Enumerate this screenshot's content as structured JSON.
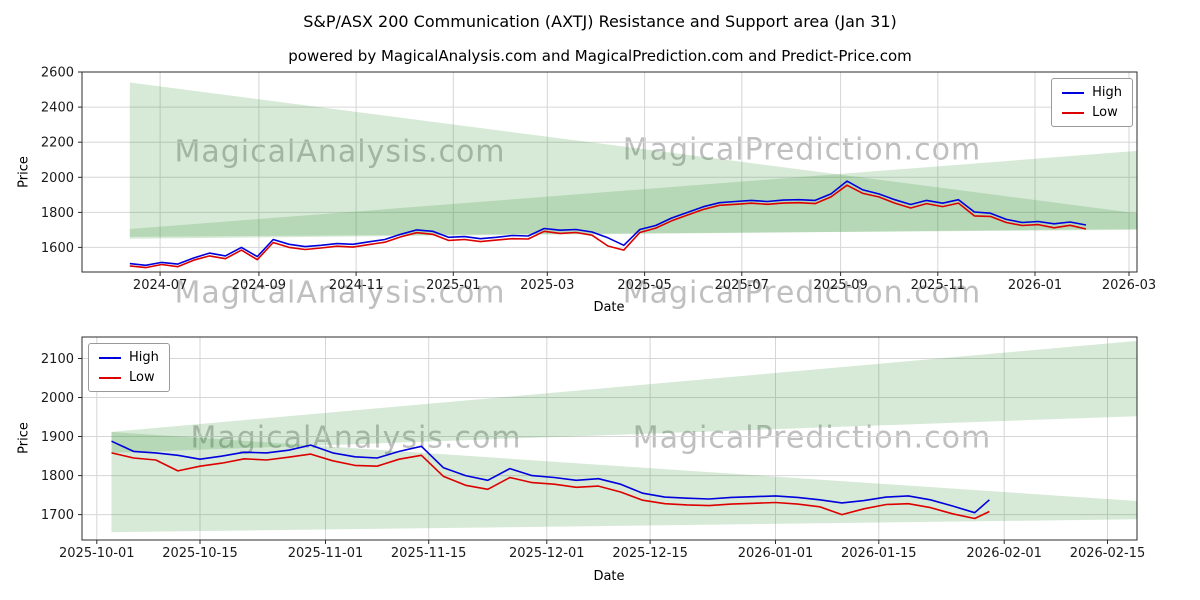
{
  "page": {
    "title": "S&P/ASX 200 Communication (AXTJ) Resistance and Support area (Jan 31)",
    "subtitle": "powered by MagicalAnalysis.com and MagicalPrediction.com and Predict-Price.com",
    "watermarks": [
      "MagicalAnalysis.com",
      "MagicalPrediction.com"
    ]
  },
  "colors": {
    "high": "#0000dd",
    "low": "#dd0000",
    "band": "rgba(34,139,34,0.18)",
    "grid": "#d6d6d6",
    "spine": "#2b2b2b",
    "tick_text": "#1a1a1a",
    "watermark": "rgba(128,128,128,0.5)"
  },
  "chart_data": [
    {
      "type": "line",
      "title": "",
      "xlabel": "Date",
      "ylabel": "Price",
      "legend_position": "upper right",
      "grid": true,
      "x_range": [
        "2024-05-13",
        "2026-03-06"
      ],
      "y_range": [
        1460,
        2600
      ],
      "y_ticks": [
        1600,
        1800,
        2000,
        2200,
        2400,
        2600
      ],
      "x_ticks": [
        {
          "pos": "2024-07-01",
          "label": "2024-07"
        },
        {
          "pos": "2024-09-01",
          "label": "2024-09"
        },
        {
          "pos": "2024-11-01",
          "label": "2024-11"
        },
        {
          "pos": "2025-01-01",
          "label": "2025-01"
        },
        {
          "pos": "2025-03-01",
          "label": "2025-03"
        },
        {
          "pos": "2025-05-01",
          "label": "2025-05"
        },
        {
          "pos": "2025-07-01",
          "label": "2025-07"
        },
        {
          "pos": "2025-09-01",
          "label": "2025-09"
        },
        {
          "pos": "2025-11-01",
          "label": "2025-11"
        },
        {
          "pos": "2026-01-01",
          "label": "2026-01"
        },
        {
          "pos": "2026-03-01",
          "label": "2026-03"
        }
      ],
      "x": [
        "2024-06-12",
        "2024-06-22",
        "2024-07-02",
        "2024-07-12",
        "2024-07-22",
        "2024-08-01",
        "2024-08-11",
        "2024-08-21",
        "2024-08-31",
        "2024-09-10",
        "2024-09-20",
        "2024-09-30",
        "2024-10-10",
        "2024-10-20",
        "2024-10-30",
        "2024-11-09",
        "2024-11-19",
        "2024-11-29",
        "2024-12-09",
        "2024-12-19",
        "2024-12-29",
        "2025-01-08",
        "2025-01-18",
        "2025-01-28",
        "2025-02-07",
        "2025-02-17",
        "2025-02-27",
        "2025-03-09",
        "2025-03-19",
        "2025-03-29",
        "2025-04-08",
        "2025-04-18",
        "2025-04-28",
        "2025-05-08",
        "2025-05-18",
        "2025-05-28",
        "2025-06-07",
        "2025-06-17",
        "2025-06-27",
        "2025-07-07",
        "2025-07-17",
        "2025-07-27",
        "2025-08-06",
        "2025-08-16",
        "2025-08-26",
        "2025-09-05",
        "2025-09-15",
        "2025-09-25",
        "2025-10-05",
        "2025-10-15",
        "2025-10-25",
        "2025-11-04",
        "2025-11-14",
        "2025-11-24",
        "2025-12-04",
        "2025-12-14",
        "2025-12-24",
        "2026-01-03",
        "2026-01-13",
        "2026-01-23",
        "2026-02-02"
      ],
      "series": [
        {
          "name": "High",
          "color": "high",
          "values": [
            1508,
            1498,
            1515,
            1505,
            1540,
            1568,
            1552,
            1600,
            1548,
            1645,
            1618,
            1605,
            1612,
            1622,
            1618,
            1632,
            1645,
            1675,
            1700,
            1692,
            1658,
            1662,
            1650,
            1658,
            1668,
            1665,
            1708,
            1698,
            1702,
            1688,
            1655,
            1612,
            1702,
            1725,
            1768,
            1800,
            1832,
            1855,
            1862,
            1868,
            1862,
            1870,
            1872,
            1868,
            1905,
            1978,
            1928,
            1905,
            1872,
            1845,
            1868,
            1852,
            1872,
            1802,
            1795,
            1760,
            1742,
            1748,
            1735,
            1745,
            1728
          ]
        },
        {
          "name": "Low",
          "color": "low",
          "values": [
            1495,
            1485,
            1503,
            1490,
            1527,
            1552,
            1536,
            1585,
            1530,
            1628,
            1600,
            1588,
            1597,
            1607,
            1602,
            1616,
            1630,
            1660,
            1684,
            1675,
            1640,
            1645,
            1633,
            1642,
            1650,
            1648,
            1692,
            1680,
            1685,
            1670,
            1608,
            1585,
            1685,
            1710,
            1752,
            1785,
            1817,
            1840,
            1846,
            1852,
            1846,
            1853,
            1855,
            1850,
            1888,
            1955,
            1908,
            1888,
            1853,
            1825,
            1850,
            1833,
            1853,
            1780,
            1777,
            1742,
            1725,
            1730,
            1712,
            1726,
            1705
          ]
        }
      ],
      "support_resistance_bands": [
        {
          "name": "resistance-band",
          "points": [
            [
              "2024-06-12",
              2540
            ],
            [
              "2026-03-06",
              1795
            ],
            [
              "2026-03-06",
              1700
            ],
            [
              "2024-06-12",
              1660
            ]
          ]
        },
        {
          "name": "support-band",
          "points": [
            [
              "2024-06-12",
              1705
            ],
            [
              "2026-03-06",
              2150
            ],
            [
              "2026-03-06",
              1705
            ],
            [
              "2024-06-12",
              1650
            ]
          ]
        }
      ]
    },
    {
      "type": "line",
      "title": "",
      "xlabel": "Date",
      "ylabel": "Price",
      "legend_position": "upper left",
      "grid": true,
      "x_range": [
        "2025-09-29",
        "2026-02-19"
      ],
      "y_range": [
        1635,
        2155
      ],
      "y_ticks": [
        1700,
        1800,
        1900,
        2000,
        2100
      ],
      "x_ticks": [
        {
          "pos": "2025-10-01",
          "label": "2025-10-01"
        },
        {
          "pos": "2025-10-15",
          "label": "2025-10-15"
        },
        {
          "pos": "2025-11-01",
          "label": "2025-11-01"
        },
        {
          "pos": "2025-11-15",
          "label": "2025-11-15"
        },
        {
          "pos": "2025-12-01",
          "label": "2025-12-01"
        },
        {
          "pos": "2025-12-15",
          "label": "2025-12-15"
        },
        {
          "pos": "2026-01-01",
          "label": "2026-01-01"
        },
        {
          "pos": "2026-01-15",
          "label": "2026-01-15"
        },
        {
          "pos": "2026-02-01",
          "label": "2026-02-01"
        },
        {
          "pos": "2026-02-15",
          "label": "2026-02-15"
        }
      ],
      "x": [
        "2025-10-03",
        "2025-10-06",
        "2025-10-09",
        "2025-10-12",
        "2025-10-15",
        "2025-10-18",
        "2025-10-21",
        "2025-10-24",
        "2025-10-27",
        "2025-10-30",
        "2025-11-02",
        "2025-11-05",
        "2025-11-08",
        "2025-11-11",
        "2025-11-14",
        "2025-11-17",
        "2025-11-20",
        "2025-11-23",
        "2025-11-26",
        "2025-11-29",
        "2025-12-02",
        "2025-12-05",
        "2025-12-08",
        "2025-12-11",
        "2025-12-14",
        "2025-12-17",
        "2025-12-20",
        "2025-12-23",
        "2025-12-26",
        "2025-12-29",
        "2026-01-01",
        "2026-01-04",
        "2026-01-07",
        "2026-01-10",
        "2026-01-13",
        "2026-01-16",
        "2026-01-19",
        "2026-01-22",
        "2026-01-25",
        "2026-01-28",
        "2026-01-30"
      ],
      "series": [
        {
          "name": "High",
          "color": "high",
          "values": [
            1888,
            1862,
            1858,
            1852,
            1842,
            1850,
            1860,
            1858,
            1865,
            1878,
            1858,
            1848,
            1845,
            1862,
            1875,
            1820,
            1800,
            1788,
            1818,
            1800,
            1795,
            1788,
            1792,
            1778,
            1755,
            1745,
            1742,
            1740,
            1744,
            1746,
            1748,
            1744,
            1738,
            1730,
            1736,
            1745,
            1748,
            1738,
            1722,
            1705,
            1738
          ]
        },
        {
          "name": "Low",
          "color": "low",
          "values": [
            1858,
            1845,
            1840,
            1812,
            1824,
            1832,
            1843,
            1840,
            1847,
            1855,
            1838,
            1826,
            1824,
            1842,
            1852,
            1798,
            1775,
            1765,
            1795,
            1782,
            1778,
            1770,
            1773,
            1758,
            1737,
            1728,
            1725,
            1723,
            1727,
            1729,
            1731,
            1727,
            1720,
            1700,
            1715,
            1726,
            1728,
            1718,
            1702,
            1690,
            1708
          ]
        }
      ],
      "support_resistance_bands": [
        {
          "name": "resistance-band",
          "points": [
            [
              "2025-10-03",
              1912
            ],
            [
              "2026-02-19",
              2145
            ],
            [
              "2026-02-19",
              1952
            ],
            [
              "2025-10-03",
              1858
            ]
          ]
        },
        {
          "name": "support-band",
          "points": [
            [
              "2025-10-03",
              1912
            ],
            [
              "2026-02-19",
              1735
            ],
            [
              "2026-02-19",
              1688
            ],
            [
              "2025-10-03",
              1655
            ]
          ]
        }
      ]
    }
  ]
}
